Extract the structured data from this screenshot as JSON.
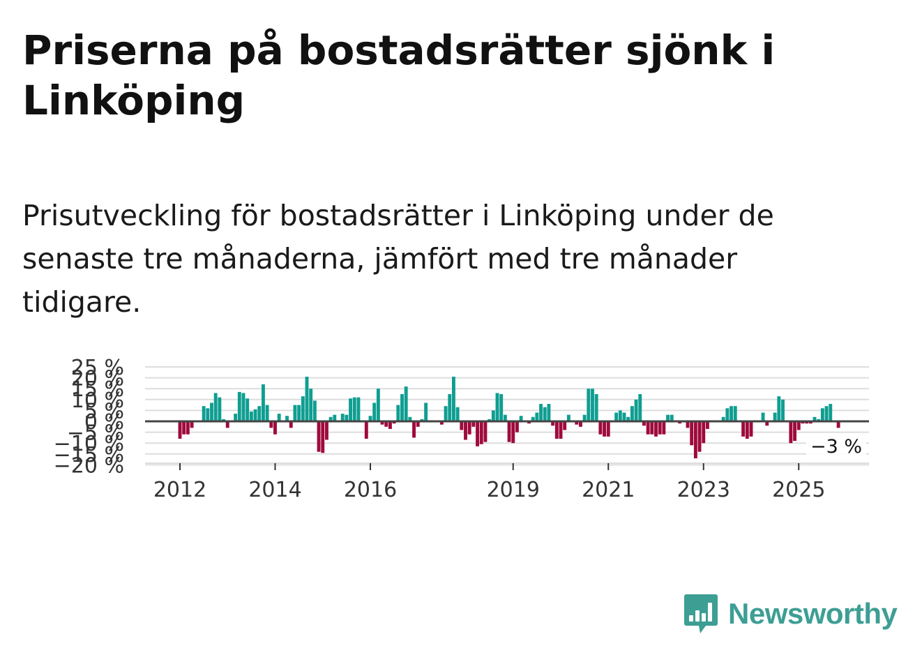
{
  "title": "Priserna på bostadsrätter sjönk i Linköping",
  "subtitle": "Prisutveckling för bostadsrätter i Linköping under de senaste tre månaderna, jämfört med tre månader tidigare.",
  "brand": {
    "name": "Newsworthy",
    "color": "#3d9e94"
  },
  "colors": {
    "positive": "#0f9e91",
    "negative": "#9e0a3c",
    "zero_line": "#444444",
    "grid": "#dddddd"
  },
  "chart_data": {
    "type": "bar",
    "title": "Prisutveckling för bostadsrätter i Linköping",
    "xlabel": "",
    "ylabel": "",
    "ylim": [
      -20,
      25
    ],
    "grid": true,
    "x_start": {
      "year": 2011,
      "month": 1
    },
    "y_ticks": [
      {
        "value": 25,
        "label": "25 %"
      },
      {
        "value": 20,
        "label": "20 %"
      },
      {
        "value": 15,
        "label": "15 %"
      },
      {
        "value": 10,
        "label": "10 %"
      },
      {
        "value": 5,
        "label": "5 %"
      },
      {
        "value": 0,
        "label": "0 %"
      },
      {
        "value": -5,
        "label": "−5 %"
      },
      {
        "value": -10,
        "label": "−10 %"
      },
      {
        "value": -15,
        "label": "−15 %"
      },
      {
        "value": -20,
        "label": "−20 %"
      }
    ],
    "x_ticks": [
      {
        "year": 2012,
        "label": "2012"
      },
      {
        "year": 2014,
        "label": "2014"
      },
      {
        "year": 2016,
        "label": "2016"
      },
      {
        "year": 2019,
        "label": "2019"
      },
      {
        "year": 2021,
        "label": "2021"
      },
      {
        "year": 2023,
        "label": "2023"
      },
      {
        "year": 2025,
        "label": "2025"
      }
    ],
    "end_label": "−3 %",
    "values": [
      0,
      0,
      0,
      0,
      0,
      0,
      0,
      0,
      0,
      0,
      0,
      0,
      -8,
      -6,
      -6,
      -3,
      0,
      0,
      7,
      6,
      8.5,
      13,
      11,
      1,
      -3,
      0,
      3.5,
      13.5,
      13,
      10.5,
      4.5,
      5.5,
      7,
      17,
      7.5,
      -3,
      -6,
      3.5,
      0,
      2.5,
      -3,
      7.5,
      7.5,
      11.5,
      20.5,
      15,
      9.5,
      -14,
      -14.5,
      -8.5,
      2,
      3,
      0,
      3.5,
      3,
      10.5,
      11,
      11,
      0,
      -8,
      2.5,
      8.5,
      15,
      -1.5,
      -2.5,
      -3.5,
      -1,
      7.5,
      12.5,
      16,
      2,
      -7.5,
      -2.5,
      1,
      8.5,
      0.5,
      0,
      0,
      -1.5,
      7,
      12.5,
      20.5,
      6.5,
      -4,
      -8.5,
      -6,
      -2.5,
      -11.5,
      -10.5,
      -9.5,
      1,
      5,
      13,
      12.5,
      3,
      -9.5,
      -10,
      -5,
      2.5,
      0,
      -1,
      2,
      4,
      8,
      6.5,
      8,
      -2,
      -8,
      -8,
      -4,
      3,
      0,
      -1.5,
      -2.5,
      3,
      15,
      15,
      12.5,
      -6,
      -7,
      -7,
      0,
      4,
      5,
      4,
      2,
      7,
      10,
      12.5,
      -2,
      -6,
      -6,
      -7,
      -6,
      -6,
      3,
      3,
      0,
      -1,
      0,
      -3,
      -11,
      -17,
      -14,
      -10,
      -3.5,
      0.5,
      0,
      0,
      2,
      6,
      7,
      7,
      0,
      -7,
      -8,
      -7,
      0.5,
      0.5,
      4,
      -2,
      0,
      4,
      11.5,
      10,
      0,
      -10,
      -9,
      -4,
      -1,
      -1,
      -1,
      2,
      1,
      6,
      7,
      8,
      0,
      -3
    ]
  }
}
